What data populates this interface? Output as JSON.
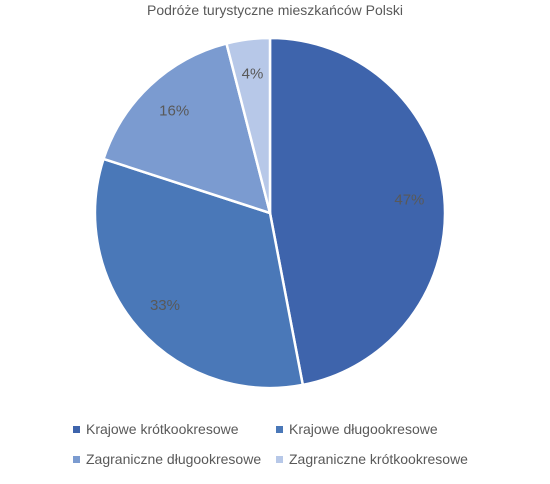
{
  "chart_data": {
    "type": "pie",
    "title": "Podróże turystyczne mieszkańców Polski",
    "categories": [
      "Krajowe krótkookresowe",
      "Krajowe długookresowe",
      "Zagraniczne długookresowe",
      "Zagraniczne krótkookresowe"
    ],
    "values": [
      47,
      33,
      16,
      4
    ],
    "labels": [
      "47%",
      "33%",
      "16%",
      "4%"
    ],
    "colors": [
      "#3e64ac",
      "#4a78b8",
      "#7b9bd0",
      "#b7c8e8"
    ],
    "legend": "bottom"
  }
}
